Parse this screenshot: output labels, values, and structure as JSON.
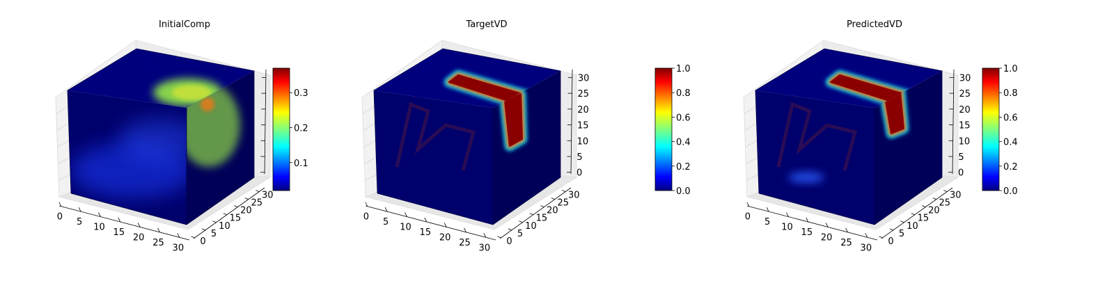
{
  "chart_data": [
    {
      "type": "heatmap",
      "title": "InitialComp",
      "xticks": [
        "0",
        "5",
        "10",
        "15",
        "20",
        "25",
        "30"
      ],
      "yticks": [
        "0",
        "5",
        "10",
        "15",
        "20",
        "25",
        "30"
      ],
      "zticks": [],
      "colorbar": {
        "min": 0.02,
        "max": 0.37,
        "ticks": [
          0.1,
          0.2,
          0.3
        ],
        "tick_labels": [
          "0.1",
          "0.2",
          "0.3"
        ]
      },
      "colormap": "jet",
      "grid": true
    },
    {
      "type": "heatmap",
      "title": "TargetVD",
      "xticks": [
        "0",
        "5",
        "10",
        "15",
        "20",
        "25",
        "30"
      ],
      "yticks": [
        "0",
        "5",
        "10",
        "15",
        "20",
        "25",
        "30"
      ],
      "zticks": [
        "0",
        "5",
        "10",
        "15",
        "20",
        "25",
        "30"
      ],
      "colorbar": {
        "min": 0.0,
        "max": 1.0,
        "ticks": [
          0.0,
          0.2,
          0.4,
          0.6,
          0.8,
          1.0
        ],
        "tick_labels": [
          "0.0",
          "0.2",
          "0.4",
          "0.6",
          "0.8",
          "1.0"
        ]
      },
      "colormap": "jet",
      "grid": true
    },
    {
      "type": "heatmap",
      "title": "PredictedVD",
      "xticks": [
        "0",
        "5",
        "10",
        "15",
        "20",
        "25",
        "30"
      ],
      "yticks": [
        "0",
        "5",
        "10",
        "15",
        "20",
        "25",
        "30"
      ],
      "zticks": [
        "0",
        "5",
        "10",
        "15",
        "20",
        "25",
        "30"
      ],
      "colorbar": {
        "min": 0.0,
        "max": 1.0,
        "ticks": [
          0.0,
          0.2,
          0.4,
          0.6,
          0.8,
          1.0
        ],
        "tick_labels": [
          "0.0",
          "0.2",
          "0.4",
          "0.6",
          "0.8",
          "1.0"
        ]
      },
      "colormap": "jet",
      "grid": true
    }
  ],
  "colors": {
    "jet_dark_blue": "#00007f",
    "jet_blue": "#0000ff",
    "jet_cyan": "#00ffff",
    "jet_yellow": "#ffff00",
    "jet_red": "#ff0000",
    "jet_dark_red": "#7f0000",
    "pane": "#f2f2f2",
    "grid": "#d4d4d4"
  }
}
